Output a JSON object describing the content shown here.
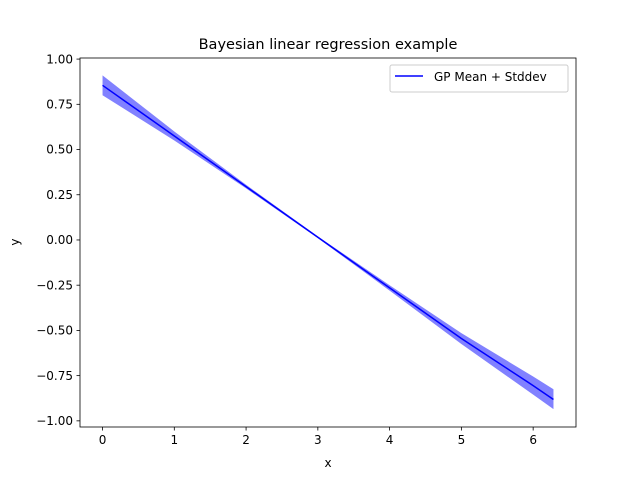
{
  "chart_data": {
    "type": "line",
    "title": "Bayesian linear regression example",
    "xlabel": "x",
    "ylabel": "y",
    "xlim": [
      -0.314,
      6.597
    ],
    "ylim": [
      -1.034,
      1.006
    ],
    "xticks": [
      0,
      1,
      2,
      3,
      4,
      5,
      6
    ],
    "yticks": [
      1.0,
      0.75,
      0.5,
      0.25,
      0.0,
      -0.25,
      -0.5,
      -0.75,
      -1.0
    ],
    "ytick_labels": [
      "1.00",
      "0.75",
      "0.50",
      "0.25",
      "0.00",
      "−0.25",
      "−0.50",
      "−0.75",
      "−1.00"
    ],
    "grid": false,
    "legend_position": "top-right",
    "series": [
      {
        "name": "GP Mean + Stddev",
        "color": "#0000ff",
        "band_color": "#7373ff",
        "x": [
          0.0,
          1.0,
          2.0,
          3.0,
          4.0,
          5.0,
          6.0,
          6.283
        ],
        "y": [
          0.855,
          0.575,
          0.295,
          0.015,
          -0.265,
          -0.545,
          -0.805,
          -0.882
        ],
        "y_lower": [
          0.8,
          0.55,
          0.285,
          0.01,
          -0.28,
          -0.575,
          -0.855,
          -0.935
        ],
        "y_upper": [
          0.91,
          0.6,
          0.305,
          0.02,
          -0.25,
          -0.515,
          -0.755,
          -0.825
        ]
      }
    ]
  }
}
